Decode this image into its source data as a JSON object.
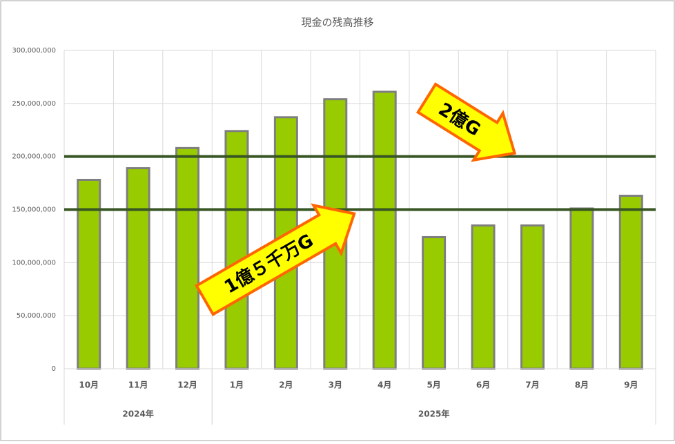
{
  "chart_data": {
    "type": "bar",
    "title": "現金の残高推移",
    "categories": [
      "10月",
      "11月",
      "12月",
      "1月",
      "2月",
      "3月",
      "4月",
      "5月",
      "6月",
      "7月",
      "8月",
      "9月"
    ],
    "category_groups": [
      "2024年",
      "2024年",
      "2024年",
      "2025年",
      "2025年",
      "2025年",
      "2025年",
      "2025年",
      "2025年",
      "2025年",
      "2025年",
      "2025年"
    ],
    "values": [
      178000000,
      189000000,
      208000000,
      224000000,
      237000000,
      254000000,
      261000000,
      124000000,
      135000000,
      135000000,
      151000000,
      163000000
    ],
    "color": "#99cc00",
    "ylim": [
      0,
      300000000
    ],
    "yticks": [
      0,
      {
        "value": 50000000,
        "label": "50,000,000"
      },
      {
        "value": 100000000,
        "label": "100,000,000"
      },
      {
        "value": 150000000,
        "label": "150,000,000"
      },
      {
        "value": 200000000,
        "label": "200,000,000"
      },
      {
        "value": 250000000,
        "label": "250,000,000"
      },
      {
        "value": 300000000,
        "label": "300,000,000"
      }
    ],
    "grid": true,
    "reference_lines": [
      {
        "value": 200000000,
        "label": "2億G",
        "color": "#375623"
      },
      {
        "value": 150000000,
        "label": "1億５千万G",
        "color": "#375623"
      }
    ]
  }
}
